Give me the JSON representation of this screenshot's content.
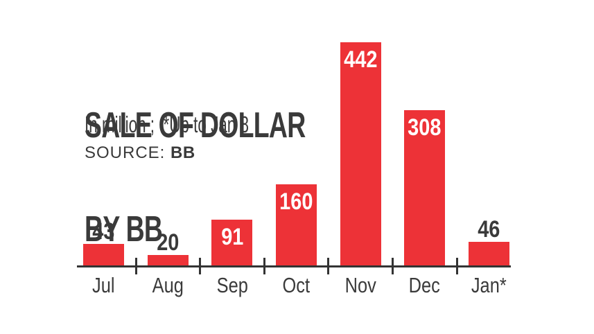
{
  "header": {
    "title_lines": [
      "SALE OF DOLLAR",
      "BY BB"
    ],
    "subtitle": "In million ;  *Up to Jan 8",
    "source_label": "SOURCE: ",
    "source_value": "BB"
  },
  "chart_data": {
    "type": "bar",
    "categories": [
      "Jul",
      "Aug",
      "Sep",
      "Oct",
      "Nov",
      "Dec",
      "Jan*"
    ],
    "values": [
      43,
      20,
      91,
      160,
      442,
      308,
      46
    ],
    "title": "SALE OF DOLLAR BY BB",
    "subtitle": "In million ;  *Up to Jan 8",
    "footnote": "*Up to Jan 8",
    "unit": "million",
    "source": "BB",
    "xlabel": "",
    "ylabel": "",
    "ylim": [
      0,
      460
    ],
    "grid": false,
    "legend": "none",
    "value_labels": "shown (inside bar for tall bars, above bar for short bars)",
    "colors": {
      "bar": "#ED3237",
      "value_label_inside": "#FFFFFF",
      "value_label_outside": "#3A3A3A",
      "axis": "#333333",
      "text": "#3A3A3A",
      "background": "#FFFFFF"
    }
  }
}
